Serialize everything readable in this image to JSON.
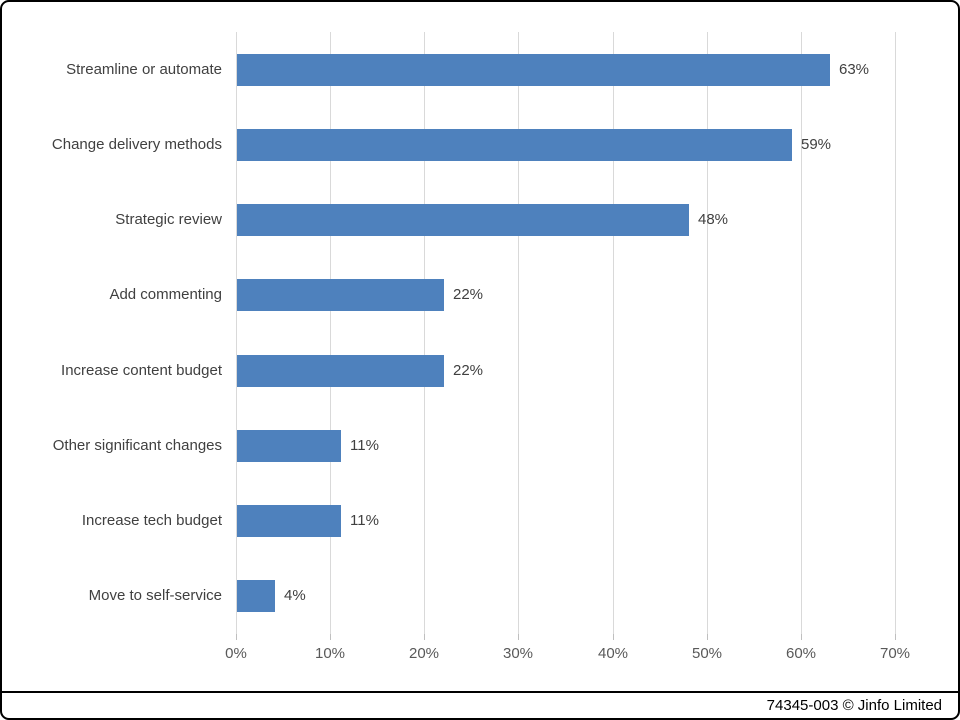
{
  "chart_data": {
    "type": "bar",
    "orientation": "horizontal",
    "categories": [
      "Streamline or automate",
      "Change delivery methods",
      "Strategic review",
      "Add commenting",
      "Increase content budget",
      "Other significant changes",
      "Increase tech budget",
      "Move to self-service"
    ],
    "values": [
      63,
      59,
      48,
      22,
      22,
      11,
      11,
      4
    ],
    "value_labels": [
      "63%",
      "59%",
      "48%",
      "22%",
      "22%",
      "11%",
      "11%",
      "4%"
    ],
    "title": "",
    "xlabel": "",
    "ylabel": "",
    "xlim": [
      0,
      70
    ],
    "x_tick_values": [
      0,
      10,
      20,
      30,
      40,
      50,
      60,
      70
    ],
    "x_tick_labels": [
      "0%",
      "10%",
      "20%",
      "30%",
      "40%",
      "50%",
      "60%",
      "70%"
    ],
    "grid": true,
    "legend": "none",
    "colors": {
      "bar": "#4E81BD",
      "gridline": "#D9D9D9",
      "category_label": "#404040",
      "value_label": "#404040",
      "tick_label": "#595959"
    }
  },
  "footer": {
    "text": "74345-003 © Jinfo Limited"
  }
}
